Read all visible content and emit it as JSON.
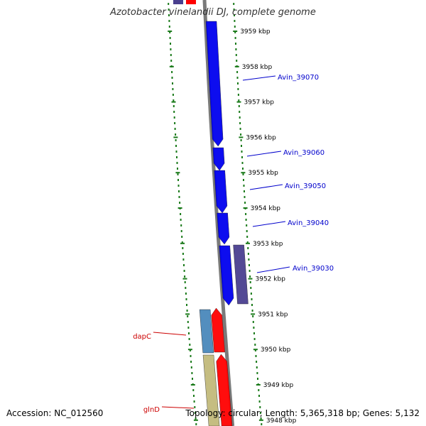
{
  "title": "Azotobacter vinelandii DJ, complete genome",
  "footer": {
    "accession": "Accession: NC_012560",
    "topology": "Topology: circular; Length: 5,365,318 bp; Genes: 5,132"
  },
  "colors": {
    "backbone": "#7a7a7a",
    "tick": "#1a7a1a",
    "forward_gene": "#0000ee",
    "reverse_gene_red": "#ff0000",
    "purple_gene": "#4a3f8f",
    "steelblue_gene": "#4a88bb",
    "khaki_gene": "#c2b97a",
    "label_blue": "#0000cc",
    "label_red": "#cc0000"
  },
  "ticks": [
    "3959 kbp",
    "3958 kbp",
    "3957 kbp",
    "3956 kbp",
    "3955 kbp",
    "3954 kbp",
    "3953 kbp",
    "3952 kbp",
    "3951 kbp",
    "3950 kbp",
    "3949 kbp",
    "3948 kbp"
  ],
  "gene_labels": [
    {
      "name": "Avin_39070",
      "color": "#0000cc"
    },
    {
      "name": "Avin_39060",
      "color": "#0000cc"
    },
    {
      "name": "Avin_39050",
      "color": "#0000cc"
    },
    {
      "name": "Avin_39040",
      "color": "#0000cc"
    },
    {
      "name": "Avin_39030",
      "color": "#0000cc"
    },
    {
      "name": "dapC",
      "color": "#cc0000"
    },
    {
      "name": "glnD",
      "color": "#cc0000"
    }
  ]
}
